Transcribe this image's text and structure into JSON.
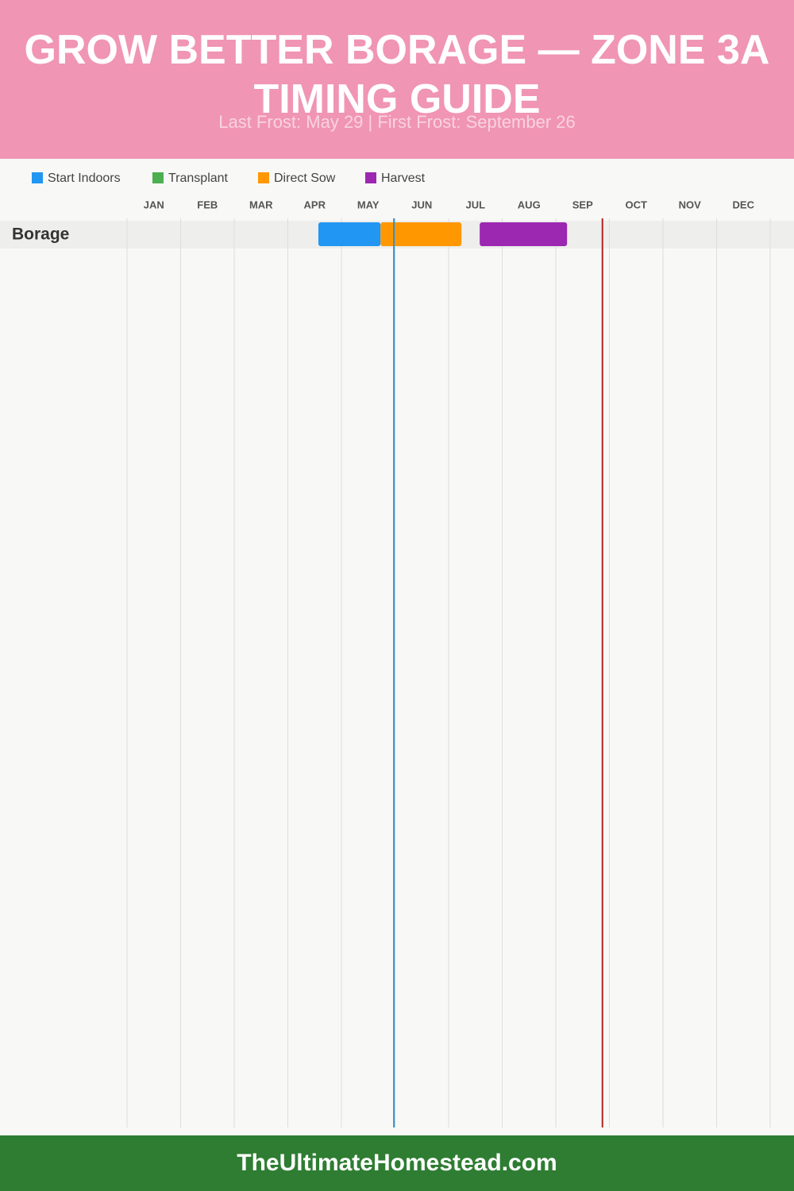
{
  "chart_data": {
    "type": "gantt",
    "title": "GROW BETTER BORAGE — ZONE 3A TIMING GUIDE",
    "subtitle": "Last Frost: May 29 | First Frost: September 26",
    "categories": [
      "JAN",
      "FEB",
      "MAR",
      "APR",
      "MAY",
      "JUN",
      "JUL",
      "AUG",
      "SEP",
      "OCT",
      "NOV",
      "DEC"
    ],
    "xlim": [
      0,
      12
    ],
    "series": [
      {
        "name": "Start Indoors",
        "color": "#2196f3"
      },
      {
        "name": "Transplant",
        "color": "#4caf50"
      },
      {
        "name": "Direct Sow",
        "color": "#ff9800"
      },
      {
        "name": "Harvest",
        "color": "#9c27b0"
      }
    ],
    "rows": [
      {
        "label": "Borage",
        "bars": [
          {
            "series": 0,
            "start": 3.57,
            "end": 4.73
          },
          {
            "series": 2,
            "start": 4.73,
            "end": 6.24
          },
          {
            "series": 3,
            "start": 6.58,
            "end": 8.21
          }
        ]
      }
    ],
    "markers": [
      {
        "value": 4.98,
        "color": "#2f8fd0"
      },
      {
        "value": 8.87,
        "color": "#b22222"
      }
    ]
  },
  "footer": {
    "text": "TheUltimateHomestead.com"
  }
}
